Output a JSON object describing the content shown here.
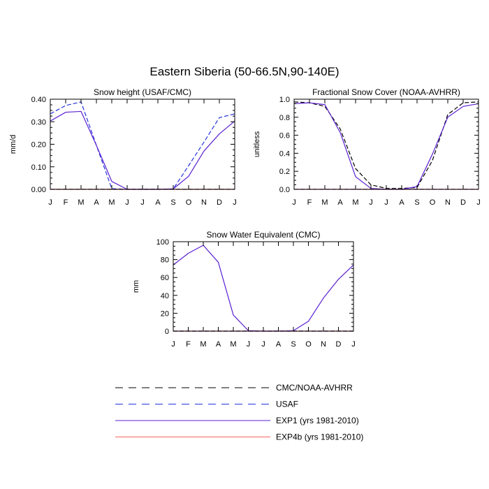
{
  "title": "Eastern Siberia (50-66.5N,90-140E)",
  "colors": {
    "cmc_noaa": "#000000",
    "usaf": "#2233dd",
    "exp1": "#5a1fd0",
    "exp4b": "#ff6060"
  },
  "legend": [
    {
      "label": "CMC/NOAA-AVHRR",
      "color": "#000000",
      "dashed": true
    },
    {
      "label": "USAF",
      "color": "#2233dd",
      "dashed": true
    },
    {
      "label": "EXP1 (yrs 1981-2010)",
      "color": "#5a1fd0",
      "dashed": false
    },
    {
      "label": "EXP4b (yrs 1981-2010)",
      "color": "#ff6060",
      "dashed": false
    }
  ],
  "chart_data": [
    {
      "type": "line",
      "title": "Snow height (USAF/CMC)",
      "xlabel": "",
      "ylabel": "mm/d",
      "categories": [
        "J",
        "F",
        "M",
        "A",
        "M",
        "J",
        "J",
        "A",
        "S",
        "O",
        "N",
        "D",
        "J"
      ],
      "yticks": [
        0.0,
        0.1,
        0.2,
        0.3,
        0.4
      ],
      "ytick_labels": [
        "0.00",
        "0.10",
        "0.20",
        "0.30",
        "0.40"
      ],
      "ylim": [
        0,
        0.4
      ],
      "series": [
        {
          "name": "CMC/NOAA-AVHRR",
          "color": "#000000",
          "dashed": true,
          "values": [
            0,
            0,
            0,
            0,
            0,
            0,
            0,
            0,
            0,
            0,
            0,
            0,
            0
          ]
        },
        {
          "name": "USAF",
          "color": "#2233dd",
          "dashed": true,
          "values": [
            0.335,
            0.372,
            0.388,
            0.195,
            0.003,
            0.0,
            0.0,
            0.0,
            0.002,
            0.105,
            0.21,
            0.318,
            0.335
          ]
        },
        {
          "name": "EXP1 (yrs 1981-2010)",
          "color": "#5a1fd0",
          "dashed": false,
          "values": [
            0.303,
            0.342,
            0.346,
            0.195,
            0.035,
            0.0,
            0.0,
            0.0,
            0.002,
            0.058,
            0.17,
            0.246,
            0.303
          ]
        },
        {
          "name": "EXP4b (yrs 1981-2010)",
          "color": "#ff6060",
          "dashed": false,
          "values": [
            0,
            0,
            0,
            0,
            0,
            0,
            0,
            0,
            0,
            0,
            0,
            0,
            0
          ]
        }
      ]
    },
    {
      "type": "line",
      "title": "Fractional Snow Cover (NOAA-AVHRR)",
      "xlabel": "",
      "ylabel": "unitless",
      "categories": [
        "J",
        "F",
        "M",
        "A",
        "M",
        "J",
        "J",
        "A",
        "S",
        "O",
        "N",
        "D",
        "J"
      ],
      "yticks": [
        0.0,
        0.2,
        0.4,
        0.6,
        0.8,
        1.0
      ],
      "ytick_labels": [
        "0.0",
        "0.2",
        "0.4",
        "0.6",
        "0.8",
        "1.0"
      ],
      "ylim": [
        0,
        1.0
      ],
      "series": [
        {
          "name": "CMC/NOAA-AVHRR",
          "color": "#000000",
          "dashed": true,
          "values": [
            0.97,
            0.96,
            0.92,
            0.67,
            0.23,
            0.05,
            0.01,
            0.01,
            0.02,
            0.32,
            0.83,
            0.96,
            0.97
          ]
        },
        {
          "name": "USAF",
          "color": "#2233dd",
          "dashed": true,
          "values": [
            0,
            0,
            0,
            0,
            0,
            0,
            0,
            0,
            0,
            0,
            0,
            0,
            0
          ]
        },
        {
          "name": "EXP1 (yrs 1981-2010)",
          "color": "#5a1fd0",
          "dashed": false,
          "values": [
            0.95,
            0.96,
            0.94,
            0.63,
            0.14,
            0.01,
            0.0,
            0.0,
            0.03,
            0.39,
            0.8,
            0.92,
            0.95
          ]
        },
        {
          "name": "EXP4b (yrs 1981-2010)",
          "color": "#ff6060",
          "dashed": false,
          "values": [
            0,
            0,
            0,
            0,
            0,
            0,
            0,
            0,
            0,
            0,
            0,
            0,
            0
          ]
        }
      ]
    },
    {
      "type": "line",
      "title": "Snow Water Equivalent (CMC)",
      "xlabel": "",
      "ylabel": "mm",
      "categories": [
        "J",
        "F",
        "M",
        "A",
        "M",
        "J",
        "J",
        "A",
        "S",
        "O",
        "N",
        "D",
        "J"
      ],
      "yticks": [
        0,
        20,
        40,
        60,
        80,
        100
      ],
      "ytick_labels": [
        "0",
        "20",
        "40",
        "60",
        "80",
        "100"
      ],
      "ylim": [
        0,
        100
      ],
      "series": [
        {
          "name": "CMC/NOAA-AVHRR",
          "color": "#000000",
          "dashed": true,
          "values": [
            0,
            0,
            0,
            0,
            0,
            0,
            0,
            0,
            0,
            0,
            0,
            0,
            0
          ]
        },
        {
          "name": "USAF",
          "color": "#2233dd",
          "dashed": true,
          "values": [
            0,
            0,
            0,
            0,
            0,
            0,
            0,
            0,
            0,
            0,
            0,
            0,
            0
          ]
        },
        {
          "name": "EXP1 (yrs 1981-2010)",
          "color": "#5a1fd0",
          "dashed": false,
          "values": [
            74,
            87,
            96,
            77,
            18,
            0.5,
            0.0,
            0.0,
            0.5,
            11,
            37,
            58,
            74
          ]
        },
        {
          "name": "EXP4b (yrs 1981-2010)",
          "color": "#ff6060",
          "dashed": false,
          "values": [
            0,
            0,
            0,
            0,
            0,
            0,
            0,
            0,
            0,
            0,
            0,
            0,
            0
          ]
        }
      ]
    }
  ]
}
